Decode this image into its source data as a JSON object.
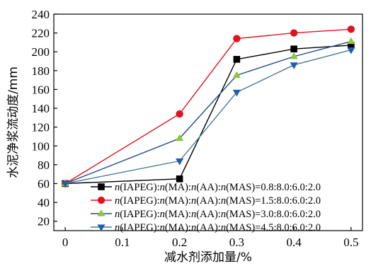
{
  "chart_data": {
    "type": "line",
    "xlabel": "减水剂添加量/%",
    "ylabel": "水泥净浆流动度/mm",
    "xlim": [
      -0.02,
      0.52
    ],
    "ylim": [
      10,
      240
    ],
    "xticks": [
      0,
      0.1,
      0.2,
      0.3,
      0.4,
      0.5
    ],
    "xtick_labels": [
      "0",
      "0.1",
      "0.2",
      "0.3",
      "0.4",
      "0.5"
    ],
    "yticks": [
      20,
      40,
      60,
      80,
      100,
      120,
      140,
      160,
      180,
      200,
      220,
      240
    ],
    "ytick_labels": [
      "20",
      "40",
      "60",
      "80",
      "100",
      "120",
      "140",
      "160",
      "180",
      "200",
      "220",
      "240"
    ],
    "x": [
      0,
      0.2,
      0.3,
      0.4,
      0.5
    ],
    "legend_position": "bottom-right",
    "grid": false,
    "series": [
      {
        "name": "n(IAPEG):n(MA):n(AA):n(MAS)=0.8:8.0:6.0:2.0",
        "legend_parts": [
          {
            "t": "n",
            "i": true
          },
          {
            "t": "(IAPEG):"
          },
          {
            "t": "n",
            "i": true
          },
          {
            "t": "(MA):"
          },
          {
            "t": "n",
            "i": true
          },
          {
            "t": "(AA):"
          },
          {
            "t": "n",
            "i": true
          },
          {
            "t": "(MAS)=0.8:8.0:6.0:2.0"
          }
        ],
        "values": [
          60,
          65,
          192,
          203,
          207
        ],
        "color": "#000000",
        "marker": "square"
      },
      {
        "name": "n(IAPEG):n(MA):n(AA):n(MAS)=1.5:8.0:6.0:2.0",
        "legend_parts": [
          {
            "t": "n",
            "i": true
          },
          {
            "t": "(IAPEG):"
          },
          {
            "t": "n",
            "i": true
          },
          {
            "t": "(MA):"
          },
          {
            "t": "n",
            "i": true
          },
          {
            "t": "(AA):"
          },
          {
            "t": "n",
            "i": true
          },
          {
            "t": "(MAS)=1.5:8.0:6.0:2.0"
          }
        ],
        "values": [
          60,
          134,
          214,
          220,
          224
        ],
        "color": "#e0141e",
        "marker": "circle"
      },
      {
        "name": "n(IAPEG):n(MA):n(AA):n(MAS)=3.0:8.0:6.0:2.0",
        "legend_parts": [
          {
            "t": "n",
            "i": true
          },
          {
            "t": "(IAPEG):"
          },
          {
            "t": "n",
            "i": true
          },
          {
            "t": "(MA):"
          },
          {
            "t": "n",
            "i": true
          },
          {
            "t": "(AA):"
          },
          {
            "t": "n",
            "i": true
          },
          {
            "t": "(MAS)=3.0:8.0:6.0:2.0"
          }
        ],
        "values": [
          60,
          108,
          175,
          195,
          211
        ],
        "color": "#1f4e8c",
        "marker_color": "#8dc63f",
        "marker": "triangle-up"
      },
      {
        "name": "n(IAPEG):n(MA):n(AA):n(MAS)=4.5:8.0:6.0:2.0",
        "legend_parts": [
          {
            "t": "n",
            "i": true
          },
          {
            "t": "(IAPEG):"
          },
          {
            "t": "n",
            "i": true
          },
          {
            "t": "(MA):"
          },
          {
            "t": "n",
            "i": true
          },
          {
            "t": "(AA):"
          },
          {
            "t": "n",
            "i": true
          },
          {
            "t": "(MAS)=4.5:8.0:6.0:2.0"
          }
        ],
        "values": [
          60,
          84,
          157,
          186,
          202
        ],
        "color": "#4a7a99",
        "marker_color": "#1f5fa8",
        "marker": "triangle-down"
      }
    ]
  }
}
